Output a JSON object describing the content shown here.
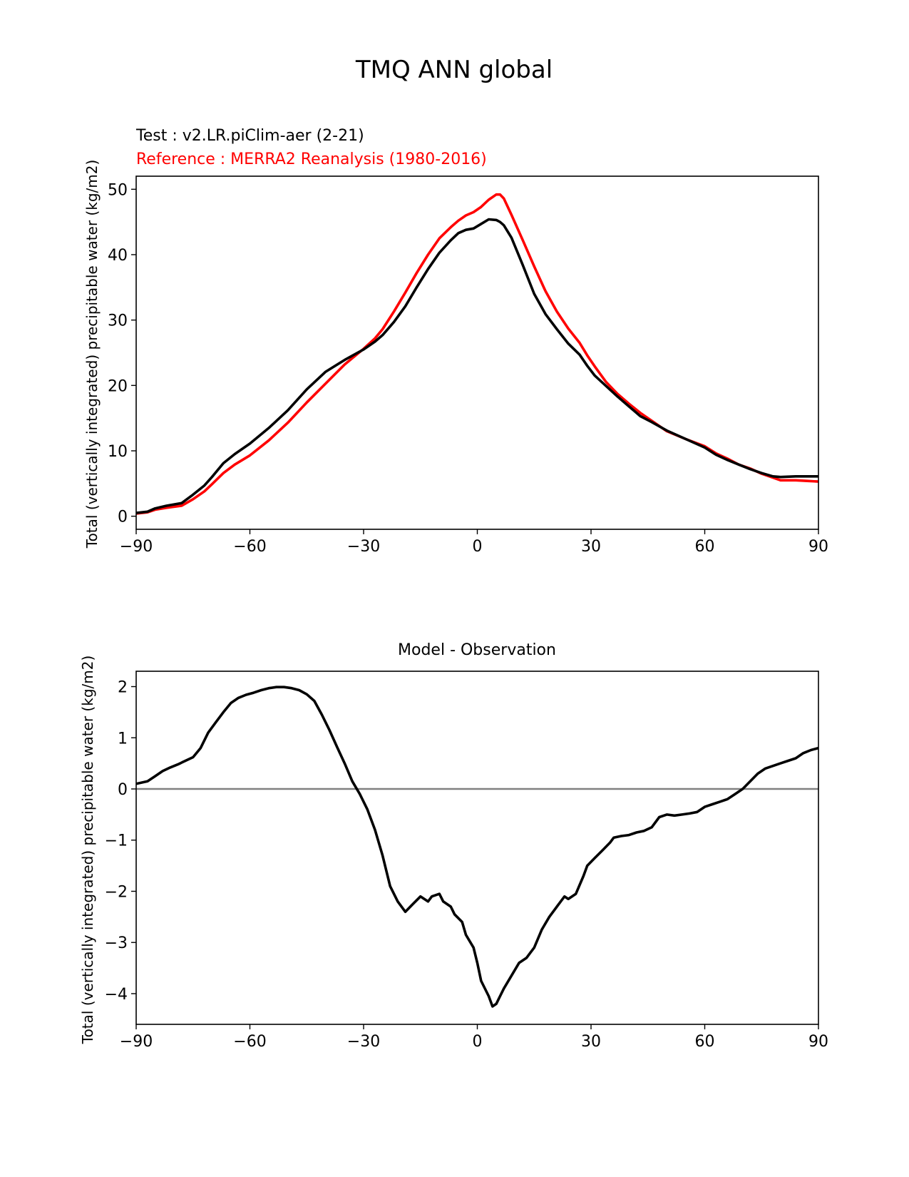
{
  "figure": {
    "title": "TMQ ANN global"
  },
  "chart_data": [
    {
      "type": "line",
      "test_label": "Test : v2.LR.piClim-aer (2-21)",
      "reference_label": "Reference : MERRA2 Reanalysis (1980-2016)",
      "ylabel": "Total (vertically integrated) precipitable water (kg/m2)",
      "xlim": [
        -90,
        90
      ],
      "ylim": [
        -2,
        52
      ],
      "xticks": [
        -90,
        -60,
        -30,
        0,
        30,
        60,
        90
      ],
      "xtick_labels": [
        "−90",
        "−60",
        "−30",
        "0",
        "30",
        "60",
        "90"
      ],
      "yticks": [
        0,
        10,
        20,
        30,
        40,
        50
      ],
      "ytick_labels": [
        "0",
        "10",
        "20",
        "30",
        "40",
        "50"
      ],
      "series": [
        {
          "color": "#ff0000",
          "x": [
            -90,
            -87,
            -85,
            -82,
            -78,
            -75,
            -72,
            -70,
            -67,
            -64,
            -60,
            -55,
            -50,
            -45,
            -40,
            -35,
            -30,
            -27,
            -25,
            -22,
            -19,
            -16,
            -13,
            -10,
            -7,
            -5,
            -3,
            -1,
            1,
            3,
            5,
            6,
            7,
            9,
            12,
            15,
            18,
            21,
            24,
            27,
            29,
            31,
            34,
            37,
            40,
            43,
            46,
            50,
            55,
            60,
            63,
            66,
            69,
            72,
            75,
            78,
            80,
            84,
            87,
            90
          ],
          "values": [
            0.4,
            0.6,
            1.0,
            1.3,
            1.6,
            2.6,
            3.8,
            4.9,
            6.6,
            7.9,
            9.3,
            11.6,
            14.3,
            17.4,
            20.3,
            23.2,
            25.6,
            27.2,
            28.6,
            31.3,
            34.2,
            37.2,
            40.0,
            42.5,
            44.2,
            45.2,
            46.0,
            46.5,
            47.3,
            48.4,
            49.2,
            49.2,
            48.6,
            46.1,
            42.2,
            38.2,
            34.4,
            31.3,
            28.7,
            26.5,
            24.6,
            22.9,
            20.5,
            18.7,
            17.2,
            15.8,
            14.6,
            13.0,
            11.8,
            10.7,
            9.6,
            8.8,
            7.9,
            7.3,
            6.5,
            5.9,
            5.5,
            5.5,
            5.4,
            5.3
          ]
        },
        {
          "color": "#000000",
          "x": [
            -90,
            -87,
            -85,
            -82,
            -78,
            -75,
            -72,
            -70,
            -67,
            -64,
            -60,
            -55,
            -50,
            -45,
            -40,
            -35,
            -30,
            -27,
            -25,
            -22,
            -19,
            -16,
            -13,
            -10,
            -7,
            -5,
            -3,
            -1,
            1,
            3,
            5,
            6,
            7,
            9,
            12,
            15,
            18,
            21,
            24,
            27,
            29,
            31,
            34,
            37,
            40,
            43,
            46,
            50,
            55,
            60,
            63,
            66,
            69,
            72,
            75,
            78,
            80,
            84,
            87,
            90
          ],
          "values": [
            0.5,
            0.7,
            1.2,
            1.6,
            2.0,
            3.3,
            4.7,
            6.0,
            8.1,
            9.5,
            11.1,
            13.5,
            16.2,
            19.4,
            22.1,
            23.9,
            25.5,
            26.7,
            27.7,
            29.7,
            32.1,
            35.0,
            37.8,
            40.3,
            42.2,
            43.3,
            43.8,
            44.0,
            44.7,
            45.4,
            45.3,
            45.0,
            44.5,
            42.6,
            38.4,
            34.0,
            30.9,
            28.6,
            26.4,
            24.7,
            23.0,
            21.5,
            19.9,
            18.3,
            16.8,
            15.3,
            14.4,
            13.1,
            11.8,
            10.5,
            9.4,
            8.6,
            7.9,
            7.2,
            6.6,
            6.1,
            6.0,
            6.1,
            6.1,
            6.1
          ]
        }
      ]
    },
    {
      "type": "line",
      "title": "Model - Observation",
      "ylabel": "Total (vertically integrated) precipitable water (kg/m2)",
      "xlim": [
        -90,
        90
      ],
      "ylim": [
        -4.6,
        2.3
      ],
      "xticks": [
        -90,
        -60,
        -30,
        0,
        30,
        60,
        90
      ],
      "xtick_labels": [
        "−90",
        "−60",
        "−30",
        "0",
        "30",
        "60",
        "90"
      ],
      "yticks": [
        -4,
        -3,
        -2,
        -1,
        0,
        1,
        2
      ],
      "ytick_labels": [
        "−4",
        "−3",
        "−2",
        "−1",
        "0",
        "1",
        "2"
      ],
      "zero_line": true,
      "zero_line_color": "#808080",
      "series": [
        {
          "color": "#000000",
          "x": [
            -90,
            -87,
            -85,
            -83,
            -81,
            -79,
            -77,
            -75,
            -73,
            -71,
            -69,
            -67,
            -65,
            -63,
            -61,
            -59,
            -57,
            -55,
            -53,
            -51,
            -49,
            -47,
            -45,
            -43,
            -41,
            -39,
            -37,
            -35,
            -33,
            -31,
            -29,
            -27,
            -25,
            -23,
            -21,
            -19,
            -17,
            -15,
            -13,
            -12,
            -10,
            -9,
            -7,
            -6,
            -4,
            -3,
            -1,
            0,
            1,
            3,
            4,
            5,
            6,
            7,
            9,
            11,
            13,
            14,
            15,
            17,
            19,
            21,
            23,
            24,
            26,
            28,
            29,
            31,
            33,
            35,
            36,
            38,
            40,
            42,
            44,
            46,
            48,
            50,
            52,
            54,
            56,
            58,
            60,
            62,
            64,
            66,
            68,
            70,
            72,
            74,
            76,
            78,
            80,
            82,
            84,
            86,
            88,
            90
          ],
          "values": [
            0.1,
            0.15,
            0.25,
            0.35,
            0.42,
            0.48,
            0.55,
            0.62,
            0.8,
            1.1,
            1.3,
            1.5,
            1.68,
            1.78,
            1.84,
            1.88,
            1.93,
            1.97,
            1.99,
            1.99,
            1.97,
            1.93,
            1.85,
            1.72,
            1.45,
            1.15,
            0.82,
            0.5,
            0.15,
            -0.1,
            -0.4,
            -0.8,
            -1.3,
            -1.9,
            -2.2,
            -2.4,
            -2.25,
            -2.1,
            -2.2,
            -2.1,
            -2.05,
            -2.2,
            -2.3,
            -2.45,
            -2.6,
            -2.85,
            -3.1,
            -3.4,
            -3.75,
            -4.05,
            -4.25,
            -4.2,
            -4.05,
            -3.9,
            -3.65,
            -3.4,
            -3.3,
            -3.2,
            -3.1,
            -2.75,
            -2.5,
            -2.3,
            -2.1,
            -2.15,
            -2.05,
            -1.7,
            -1.5,
            -1.35,
            -1.2,
            -1.05,
            -0.95,
            -0.92,
            -0.9,
            -0.85,
            -0.82,
            -0.75,
            -0.55,
            -0.5,
            -0.52,
            -0.5,
            -0.48,
            -0.45,
            -0.35,
            -0.3,
            -0.25,
            -0.2,
            -0.1,
            0.0,
            0.15,
            0.3,
            0.4,
            0.45,
            0.5,
            0.55,
            0.6,
            0.7,
            0.76,
            0.8
          ]
        }
      ]
    }
  ]
}
